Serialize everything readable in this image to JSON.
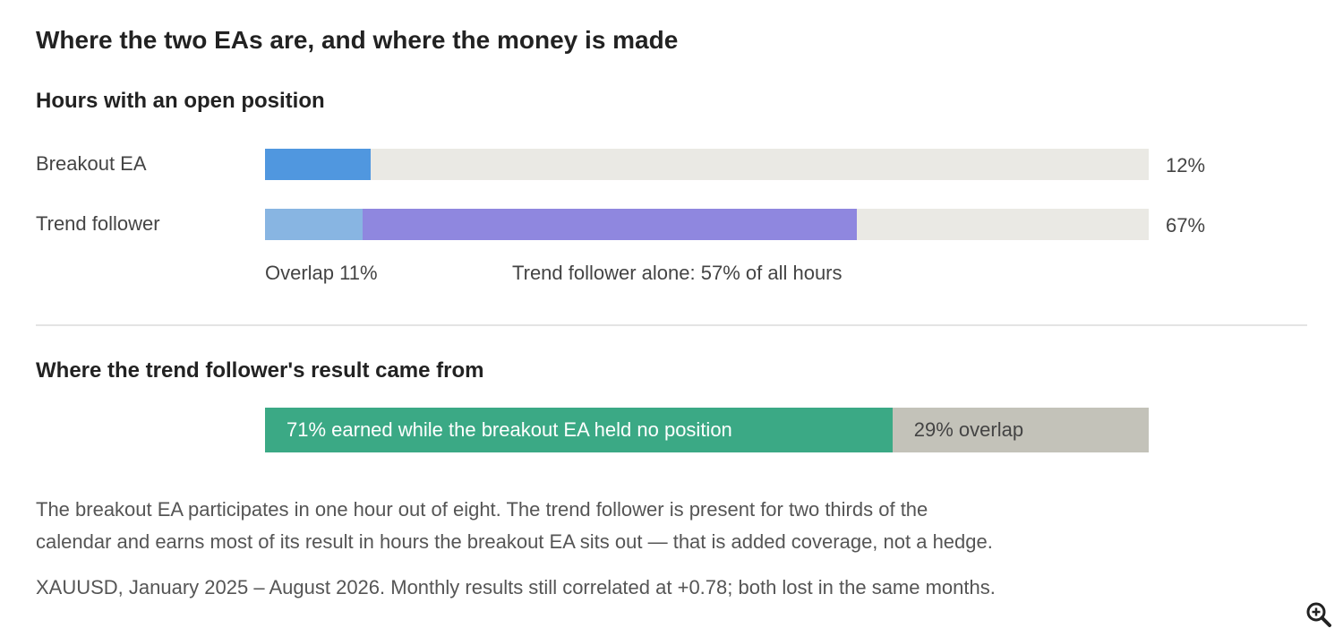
{
  "title": "Where the two EAs are, and where the money is made",
  "section1": {
    "heading": "Hours with an open position",
    "overlap_label": "Overlap 11%",
    "alone_label": "Trend follower alone: 57% of all hours"
  },
  "section2": {
    "heading": "Where the trend follower's result came from"
  },
  "paragraph": {
    "line1": "The breakout EA participates in one hour out of eight. The trend follower is present for two thirds of the",
    "line2": "calendar and earns most of its result in hours the breakout EA sits out — that is added coverage, not a hedge."
  },
  "footnote": "XAUUSD, January 2025 – August 2026. Monthly results still correlated at +0.78; both lost in the same months.",
  "zoom_icon": "zoom-in-icon",
  "colors": {
    "breakout": "#5097df",
    "overlap": "#88b5e2",
    "trend_alone": "#8f87df",
    "track": "#eae9e4",
    "earned_alone": "#3ba985",
    "earned_overlap": "#c3c2b9"
  },
  "chart_data": [
    {
      "type": "bar",
      "title": "Hours with an open position",
      "unit": "% of all hours",
      "xlim": [
        0,
        100
      ],
      "rows": [
        {
          "label": "Breakout EA",
          "value_label": "12%",
          "total": 12,
          "segments": [
            {
              "key": "breakout",
              "from": 0,
              "to": 12
            }
          ]
        },
        {
          "label": "Trend follower",
          "value_label": "67%",
          "total": 67,
          "segments": [
            {
              "key": "overlap",
              "from": 0,
              "to": 11
            },
            {
              "key": "trend_alone",
              "from": 11,
              "to": 67
            }
          ]
        }
      ],
      "annotations": [
        "Overlap 11%",
        "Trend follower alone: 57% of all hours"
      ]
    },
    {
      "type": "bar",
      "title": "Where the trend follower's result came from",
      "stacked": true,
      "segments": [
        {
          "key": "earned_alone",
          "value": 71,
          "label": "71% earned while the breakout EA held no position"
        },
        {
          "key": "earned_overlap",
          "value": 29,
          "label": "29% overlap"
        }
      ]
    }
  ]
}
